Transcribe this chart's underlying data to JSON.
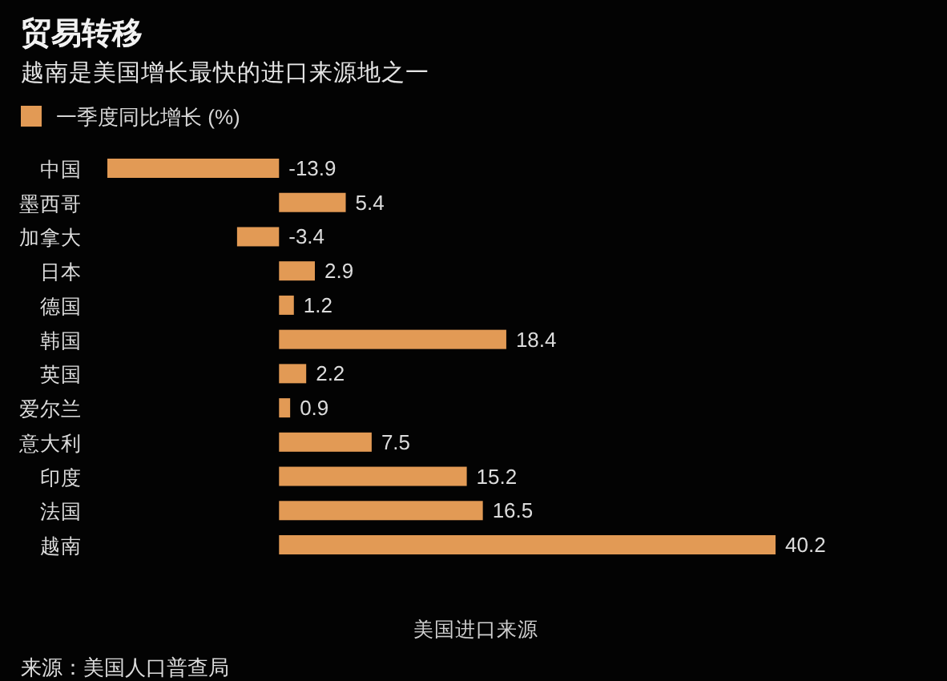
{
  "chart_data": {
    "type": "bar",
    "orientation": "horizontal",
    "title": "贸易转移",
    "subtitle": "越南是美国增长最快的进口来源地之一",
    "xlabel": "美国进口来源",
    "annotations": [
      "来源：美国人口普查局"
    ],
    "categories": [
      "中国",
      "墨西哥",
      "加拿大",
      "日本",
      "德国",
      "韩国",
      "英国",
      "爱尔兰",
      "意大利",
      "印度",
      "法国",
      "越南"
    ],
    "series": [
      {
        "name": "一季度同比增长 (%)",
        "color": "#e29a55",
        "values": [
          -13.9,
          5.4,
          -3.4,
          2.9,
          1.2,
          18.4,
          2.2,
          0.9,
          7.5,
          15.2,
          16.5,
          40.2
        ]
      }
    ],
    "data_labels": true,
    "legend": "top left",
    "tick_labels": "y"
  }
}
